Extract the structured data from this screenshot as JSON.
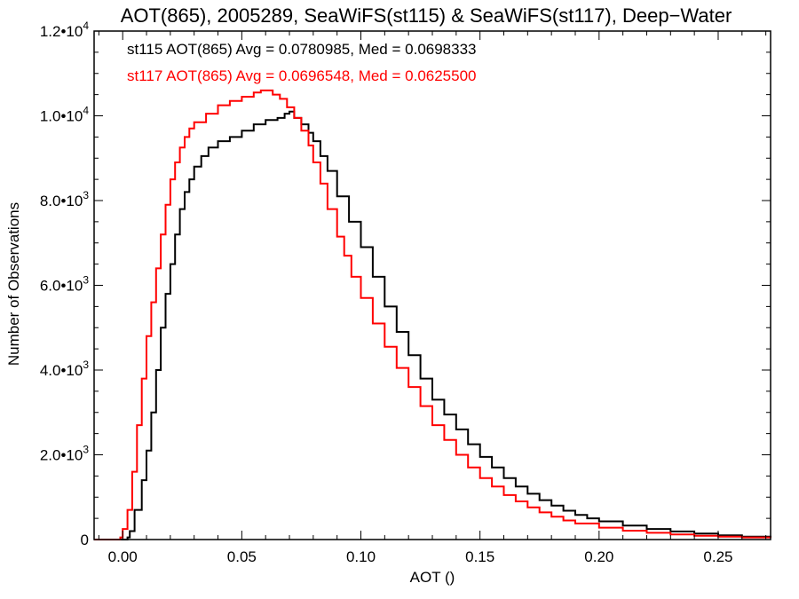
{
  "chart_data": {
    "type": "line",
    "title": "AOT(865), 2005289, SeaWiFS(st115) & SeaWiFS(st117), Deep−Water",
    "xlabel": "AOT ()",
    "ylabel": "Number of Observations",
    "xlim": [
      -0.012,
      0.272
    ],
    "ylim": [
      0,
      12000
    ],
    "x_ticks": [
      0.0,
      0.05,
      0.1,
      0.15,
      0.2,
      0.25
    ],
    "x_tick_labels": [
      "0.00",
      "0.05",
      "0.10",
      "0.15",
      "0.20",
      "0.25"
    ],
    "y_ticks": [
      0,
      2000,
      4000,
      6000,
      8000,
      10000,
      12000
    ],
    "y_tick_labels": [
      {
        "mant": "0",
        "exp": ""
      },
      {
        "mant": "2.0•",
        "exp": "3"
      },
      {
        "mant": "4.0•",
        "exp": "3"
      },
      {
        "mant": "6.0•",
        "exp": "3"
      },
      {
        "mant": "8.0•",
        "exp": "3"
      },
      {
        "mant": "1.0•",
        "exp": "4"
      },
      {
        "mant": "1.2•",
        "exp": "4"
      }
    ],
    "step": "histogram",
    "annotations": [
      {
        "text": "st115 AOT(865) Avg = 0.0780985, Med = 0.0698333",
        "color": "#000000"
      },
      {
        "text": "st117 AOT(865) Avg = 0.0696548, Med = 0.0625500",
        "color": "#ff0000"
      }
    ],
    "series": [
      {
        "color": "#000000",
        "points": [
          [
            -0.012,
            0
          ],
          [
            0.001,
            0
          ],
          [
            0.002,
            50
          ],
          [
            0.003,
            200
          ],
          [
            0.005,
            700
          ],
          [
            0.008,
            1400
          ],
          [
            0.01,
            2100
          ],
          [
            0.012,
            3000
          ],
          [
            0.014,
            4000
          ],
          [
            0.016,
            5000
          ],
          [
            0.018,
            5800
          ],
          [
            0.02,
            6500
          ],
          [
            0.022,
            7200
          ],
          [
            0.024,
            7800
          ],
          [
            0.026,
            8200
          ],
          [
            0.028,
            8500
          ],
          [
            0.03,
            8800
          ],
          [
            0.033,
            9050
          ],
          [
            0.036,
            9250
          ],
          [
            0.04,
            9400
          ],
          [
            0.045,
            9500
          ],
          [
            0.05,
            9650
          ],
          [
            0.055,
            9800
          ],
          [
            0.06,
            9900
          ],
          [
            0.065,
            9950
          ],
          [
            0.068,
            10050
          ],
          [
            0.07,
            10100
          ],
          [
            0.072,
            9950
          ],
          [
            0.075,
            9800
          ],
          [
            0.078,
            9600
          ],
          [
            0.08,
            9400
          ],
          [
            0.083,
            9050
          ],
          [
            0.086,
            8700
          ],
          [
            0.09,
            8100
          ],
          [
            0.095,
            7500
          ],
          [
            0.1,
            6900
          ],
          [
            0.105,
            6200
          ],
          [
            0.11,
            5500
          ],
          [
            0.115,
            4900
          ],
          [
            0.12,
            4350
          ],
          [
            0.125,
            3800
          ],
          [
            0.13,
            3300
          ],
          [
            0.135,
            2950
          ],
          [
            0.14,
            2600
          ],
          [
            0.145,
            2250
          ],
          [
            0.15,
            1950
          ],
          [
            0.155,
            1700
          ],
          [
            0.16,
            1450
          ],
          [
            0.165,
            1250
          ],
          [
            0.17,
            1080
          ],
          [
            0.175,
            930
          ],
          [
            0.18,
            800
          ],
          [
            0.185,
            680
          ],
          [
            0.19,
            580
          ],
          [
            0.195,
            500
          ],
          [
            0.2,
            430
          ],
          [
            0.21,
            330
          ],
          [
            0.22,
            250
          ],
          [
            0.23,
            190
          ],
          [
            0.24,
            140
          ],
          [
            0.25,
            100
          ],
          [
            0.26,
            70
          ],
          [
            0.272,
            50
          ]
        ]
      },
      {
        "color": "#ff0000",
        "points": [
          [
            -0.012,
            0
          ],
          [
            -0.002,
            0
          ],
          [
            -0.001,
            50
          ],
          [
            0.0,
            250
          ],
          [
            0.002,
            700
          ],
          [
            0.004,
            1600
          ],
          [
            0.006,
            2700
          ],
          [
            0.008,
            3800
          ],
          [
            0.01,
            4800
          ],
          [
            0.012,
            5600
          ],
          [
            0.014,
            6400
          ],
          [
            0.016,
            7200
          ],
          [
            0.018,
            7900
          ],
          [
            0.02,
            8500
          ],
          [
            0.022,
            8900
          ],
          [
            0.024,
            9250
          ],
          [
            0.026,
            9500
          ],
          [
            0.028,
            9700
          ],
          [
            0.03,
            9850
          ],
          [
            0.035,
            10050
          ],
          [
            0.04,
            10250
          ],
          [
            0.045,
            10350
          ],
          [
            0.05,
            10450
          ],
          [
            0.055,
            10550
          ],
          [
            0.058,
            10600
          ],
          [
            0.06,
            10600
          ],
          [
            0.063,
            10500
          ],
          [
            0.066,
            10400
          ],
          [
            0.069,
            10200
          ],
          [
            0.072,
            9950
          ],
          [
            0.075,
            9650
          ],
          [
            0.078,
            9300
          ],
          [
            0.08,
            8900
          ],
          [
            0.083,
            8400
          ],
          [
            0.086,
            7800
          ],
          [
            0.09,
            7150
          ],
          [
            0.093,
            6700
          ],
          [
            0.096,
            6200
          ],
          [
            0.1,
            5700
          ],
          [
            0.105,
            5100
          ],
          [
            0.11,
            4550
          ],
          [
            0.115,
            4050
          ],
          [
            0.12,
            3600
          ],
          [
            0.125,
            3150
          ],
          [
            0.13,
            2700
          ],
          [
            0.135,
            2350
          ],
          [
            0.14,
            2000
          ],
          [
            0.145,
            1700
          ],
          [
            0.15,
            1450
          ],
          [
            0.155,
            1250
          ],
          [
            0.16,
            1050
          ],
          [
            0.165,
            900
          ],
          [
            0.17,
            760
          ],
          [
            0.175,
            640
          ],
          [
            0.18,
            540
          ],
          [
            0.185,
            450
          ],
          [
            0.19,
            380
          ],
          [
            0.2,
            280
          ],
          [
            0.21,
            210
          ],
          [
            0.22,
            160
          ],
          [
            0.23,
            120
          ],
          [
            0.24,
            90
          ],
          [
            0.25,
            70
          ],
          [
            0.26,
            50
          ],
          [
            0.272,
            40
          ]
        ]
      }
    ]
  }
}
